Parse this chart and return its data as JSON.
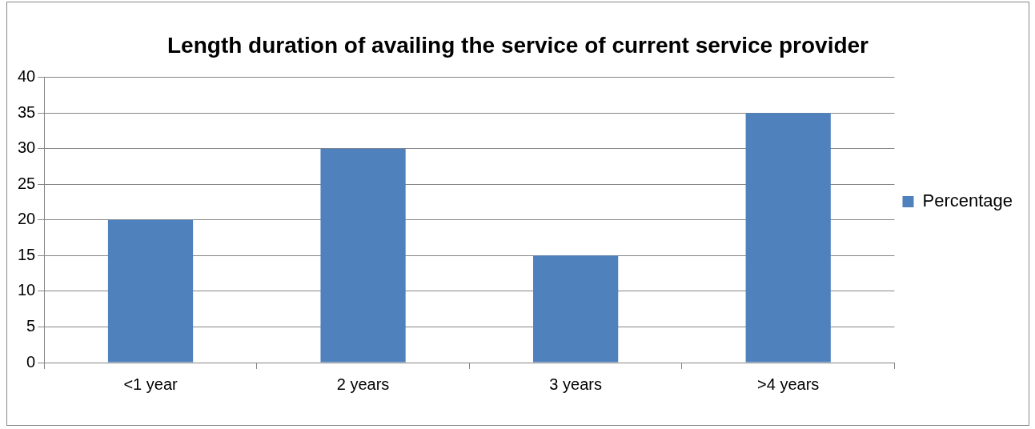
{
  "chart_data": {
    "type": "bar",
    "title": "Length duration of availing the service of current service provider",
    "categories": [
      "<1 year",
      "2 years",
      "3 years",
      ">4 years"
    ],
    "series": [
      {
        "name": "Percentage",
        "color": "#4f81bd",
        "values": [
          20,
          30,
          15,
          35
        ]
      }
    ],
    "ylim": [
      0,
      40
    ],
    "yticks": [
      0,
      5,
      10,
      15,
      20,
      25,
      30,
      35,
      40
    ],
    "grid": "y",
    "legend": "right"
  }
}
